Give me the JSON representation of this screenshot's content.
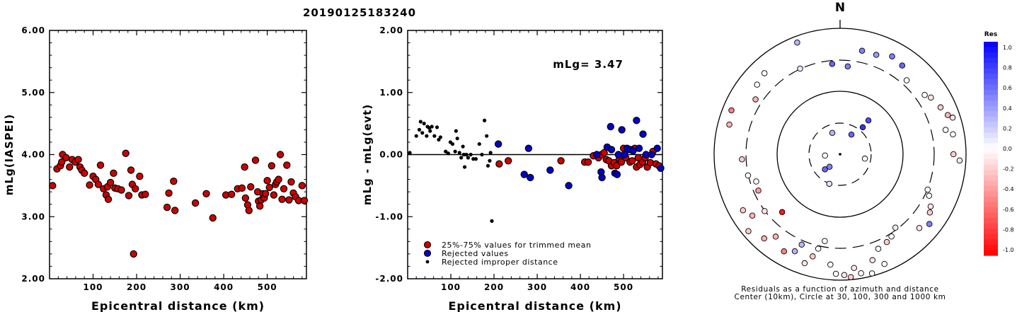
{
  "title": "20190125183240",
  "chart_data": [
    {
      "type": "scatter",
      "ylabel": "mLg(IASPEI)",
      "xlabel": "Epicentral distance (km)",
      "xlim": [
        0,
        590
      ],
      "ylim": [
        2.0,
        6.0
      ],
      "x_ticks": [
        100,
        200,
        300,
        400,
        500
      ],
      "x_tick_labels": [
        "100",
        "200",
        "300",
        "400",
        "500"
      ],
      "y_ticks": [
        2,
        3,
        4,
        5,
        6
      ],
      "y_tick_labels": [
        "2.00",
        "3.00",
        "4.00",
        "5.00",
        "6.00"
      ],
      "series": [
        {
          "color": "#cc0000",
          "points": [
            [
              7,
              3.5
            ],
            [
              17,
              3.77
            ],
            [
              25,
              3.82
            ],
            [
              28,
              3.88
            ],
            [
              30,
              4.0
            ],
            [
              38,
              3.95
            ],
            [
              46,
              3.8
            ],
            [
              52,
              3.92
            ],
            [
              59,
              3.88
            ],
            [
              66,
              3.92
            ],
            [
              70,
              3.8
            ],
            [
              74,
              3.75
            ],
            [
              80,
              3.7
            ],
            [
              92,
              3.51
            ],
            [
              100,
              3.65
            ],
            [
              106,
              3.6
            ],
            [
              112,
              3.52
            ],
            [
              117,
              3.83
            ],
            [
              124,
              3.45
            ],
            [
              130,
              3.35
            ],
            [
              133,
              3.48
            ],
            [
              135,
              3.28
            ],
            [
              140,
              3.55
            ],
            [
              147,
              3.7
            ],
            [
              150,
              3.46
            ],
            [
              157,
              3.45
            ],
            [
              165,
              3.43
            ],
            [
              175,
              4.02
            ],
            [
              182,
              3.34
            ],
            [
              187,
              3.75
            ],
            [
              190,
              3.52
            ],
            [
              193,
              2.4
            ],
            [
              197,
              3.45
            ],
            [
              207,
              3.65
            ],
            [
              212,
              3.35
            ],
            [
              220,
              3.36
            ],
            [
              270,
              3.15
            ],
            [
              274,
              3.38
            ],
            [
              285,
              3.57
            ],
            [
              288,
              3.1
            ],
            [
              335,
              3.22
            ],
            [
              360,
              3.37
            ],
            [
              375,
              2.98
            ],
            [
              405,
              3.35
            ],
            [
              418,
              3.36
            ],
            [
              432,
              3.45
            ],
            [
              442,
              3.46
            ],
            [
              448,
              3.8
            ],
            [
              450,
              3.3
            ],
            [
              455,
              3.19
            ],
            [
              458,
              3.1
            ],
            [
              462,
              3.48
            ],
            [
              473,
              3.91
            ],
            [
              478,
              3.4
            ],
            [
              480,
              3.25
            ],
            [
              483,
              3.17
            ],
            [
              486,
              3.27
            ],
            [
              490,
              3.37
            ],
            [
              493,
              3.3
            ],
            [
              496,
              3.37
            ],
            [
              500,
              3.58
            ],
            [
              505,
              3.47
            ],
            [
              510,
              3.82
            ],
            [
              515,
              3.35
            ],
            [
              519,
              3.52
            ],
            [
              522,
              3.56
            ],
            [
              526,
              3.6
            ],
            [
              530,
              4.0
            ],
            [
              534,
              3.28
            ],
            [
              538,
              3.45
            ],
            [
              545,
              3.83
            ],
            [
              550,
              3.27
            ],
            [
              555,
              3.56
            ],
            [
              560,
              3.38
            ],
            [
              565,
              3.32
            ],
            [
              572,
              3.26
            ],
            [
              580,
              3.5
            ],
            [
              585,
              3.26
            ]
          ]
        }
      ]
    },
    {
      "type": "scatter",
      "ylabel": "mLg - mLg(evt)",
      "xlabel": "Epicentral distance (km)",
      "annotation": "mLg= 3.47",
      "xlim": [
        0,
        590
      ],
      "ylim": [
        -2.0,
        2.0
      ],
      "x_ticks": [
        100,
        200,
        300,
        400,
        500
      ],
      "x_tick_labels": [
        "100",
        "200",
        "300",
        "400",
        "500"
      ],
      "y_ticks": [
        -2,
        -1,
        0,
        1,
        2
      ],
      "y_tick_labels": [
        "-2.00",
        "-1.00",
        "0.00",
        "1.00",
        "2.00"
      ],
      "reference_line": 0,
      "legend": [
        "25%-75% values for trimmed mean",
        "Rejected values",
        "Rejected improper distance"
      ],
      "series": [
        {
          "name": "25%-75% values for trimmed mean",
          "color": "#cc0000",
          "marker": "circle",
          "points": [
            [
              212,
              -0.15
            ],
            [
              233,
              -0.1
            ],
            [
              355,
              -0.1
            ],
            [
              410,
              -0.12
            ],
            [
              418,
              -0.12
            ],
            [
              430,
              -0.02
            ],
            [
              442,
              -0.05
            ],
            [
              449,
              0.0
            ],
            [
              455,
              0.03
            ],
            [
              460,
              -0.08
            ],
            [
              466,
              -0.1
            ],
            [
              472,
              -0.18
            ],
            [
              478,
              -0.13
            ],
            [
              484,
              -0.18
            ],
            [
              490,
              -0.07
            ],
            [
              495,
              -0.12
            ],
            [
              500,
              0.1
            ],
            [
              505,
              -0.05
            ],
            [
              510,
              0.08
            ],
            [
              515,
              -0.12
            ],
            [
              520,
              -0.1
            ],
            [
              526,
              0.1
            ],
            [
              530,
              -0.2
            ],
            [
              534,
              -0.05
            ],
            [
              538,
              -0.16
            ],
            [
              544,
              -0.12
            ],
            [
              550,
              -0.05
            ],
            [
              555,
              -0.2
            ],
            [
              562,
              -0.13
            ],
            [
              568,
              0.05
            ],
            [
              575,
              -0.15
            ],
            [
              582,
              -0.18
            ]
          ]
        },
        {
          "name": "Rejected values",
          "color": "#0000cc",
          "marker": "circle",
          "points": [
            [
              210,
              0.17
            ],
            [
              270,
              -0.32
            ],
            [
              280,
              0.1
            ],
            [
              284,
              -0.37
            ],
            [
              330,
              -0.25
            ],
            [
              373,
              -0.5
            ],
            [
              438,
              0.0
            ],
            [
              448,
              -0.28
            ],
            [
              450,
              -0.37
            ],
            [
              462,
              0.12
            ],
            [
              470,
              0.45
            ],
            [
              472,
              0.08
            ],
            [
              480,
              -0.3
            ],
            [
              485,
              -0.32
            ],
            [
              488,
              0.0
            ],
            [
              496,
              0.4
            ],
            [
              502,
              0.0
            ],
            [
              508,
              0.1
            ],
            [
              516,
              0.08
            ],
            [
              522,
              0.06
            ],
            [
              530,
              0.55
            ],
            [
              536,
              0.1
            ],
            [
              545,
              0.33
            ],
            [
              552,
              0.0
            ],
            [
              565,
              0.0
            ],
            [
              578,
              0.1
            ],
            [
              586,
              -0.22
            ]
          ]
        },
        {
          "name": "Rejected improper distance",
          "color": "#000000",
          "marker": "dot",
          "points": [
            [
              5,
              0.03
            ],
            [
              20,
              0.3
            ],
            [
              27,
              0.4
            ],
            [
              30,
              0.53
            ],
            [
              34,
              0.35
            ],
            [
              38,
              0.5
            ],
            [
              44,
              0.3
            ],
            [
              46,
              0.45
            ],
            [
              50,
              0.43
            ],
            [
              52,
              0.38
            ],
            [
              56,
              0.45
            ],
            [
              62,
              0.3
            ],
            [
              68,
              0.44
            ],
            [
              72,
              0.24
            ],
            [
              76,
              0.28
            ],
            [
              88,
              0.05
            ],
            [
              94,
              0.02
            ],
            [
              99,
              0.2
            ],
            [
              104,
              0.17
            ],
            [
              110,
              0.05
            ],
            [
              112,
              0.38
            ],
            [
              115,
              0.26
            ],
            [
              120,
              0.03
            ],
            [
              124,
              -0.05
            ],
            [
              128,
              0.13
            ],
            [
              130,
              0.0
            ],
            [
              132,
              -0.2
            ],
            [
              136,
              0.0
            ],
            [
              140,
              -0.05
            ],
            [
              146,
              0.0
            ],
            [
              152,
              -0.07
            ],
            [
              158,
              -0.07
            ],
            [
              166,
              0.17
            ],
            [
              172,
              0.0
            ],
            [
              178,
              0.55
            ],
            [
              183,
              0.3
            ],
            [
              186,
              -0.18
            ],
            [
              190,
              -0.1
            ],
            [
              192,
              0.03
            ],
            [
              195,
              -1.07
            ]
          ]
        }
      ]
    },
    {
      "type": "scatter",
      "polar": true,
      "north_label": "N",
      "caption": [
        "Residuals as a function of azimuth and distance",
        "Center (10km), Circle at 30, 100, 300 and 1000 km"
      ],
      "colorbar": {
        "title": "Res",
        "range": [
          -1.0,
          1.0
        ],
        "tick_labels": [
          "1.0",
          "0.8",
          "0.6",
          "0.4",
          "0.2",
          "0.0",
          "-0.2",
          "-0.4",
          "-0.6",
          "-0.8",
          "-1.0"
        ]
      },
      "stations": [
        [
          100,
          20,
          0.0
        ],
        [
          340,
          18,
          0.3
        ],
        [
          265,
          12,
          0.0
        ],
        [
          200,
          25,
          0.1
        ],
        [
          40,
          28,
          0.8
        ],
        [
          30,
          18,
          0.6
        ],
        [
          225,
          17,
          0.6
        ],
        [
          220,
          13,
          0.5
        ],
        [
          40,
          35,
          0.7
        ],
        [
          355,
          72,
          0.6
        ],
        [
          5,
          70,
          0.5
        ],
        [
          12,
          84,
          0.5
        ],
        [
          20,
          84,
          0.4
        ],
        [
          35,
          86,
          0.6
        ],
        [
          28,
          88,
          0.5
        ],
        [
          42,
          79,
          0.0
        ],
        [
          55,
          82,
          0.0
        ],
        [
          58,
          85,
          -0.1
        ],
        [
          65,
          88,
          -0.2
        ],
        [
          70,
          91,
          -0.3
        ],
        [
          72,
          94,
          -0.1
        ],
        [
          77,
          86,
          0.0
        ],
        [
          80,
          91,
          0.0
        ],
        [
          90,
          90,
          -0.2
        ],
        [
          93,
          95,
          -0.1
        ],
        [
          112,
          75,
          0.0
        ],
        [
          115,
          78,
          0.0
        ],
        [
          120,
          83,
          -0.1
        ],
        [
          123,
          85,
          -0.2
        ],
        [
          128,
          90,
          0.5
        ],
        [
          133,
          86,
          -0.1
        ],
        [
          143,
          73,
          -0.1
        ],
        [
          148,
          77,
          0.0
        ],
        [
          152,
          79,
          -0.2
        ],
        [
          158,
          81,
          0.0
        ],
        [
          158,
          94,
          0.0
        ],
        [
          163,
          88,
          -0.1
        ],
        [
          165,
          98,
          0.0
        ],
        [
          170,
          96,
          0.0
        ],
        [
          173,
          91,
          -0.1
        ],
        [
          175,
          98,
          -0.2
        ],
        [
          178,
          96,
          -0.1
        ],
        [
          182,
          95,
          0.0
        ],
        [
          185,
          88,
          0.0
        ],
        [
          190,
          70,
          0.0
        ],
        [
          193,
          77,
          0.0
        ],
        [
          195,
          84,
          -0.2
        ],
        [
          198,
          91,
          -0.1
        ],
        [
          203,
          78,
          0.3
        ],
        [
          205,
          85,
          0.3
        ],
        [
          210,
          89,
          -0.5
        ],
        [
          218,
          83,
          -0.3
        ],
        [
          222,
          90,
          -0.3
        ],
        [
          225,
          65,
          -0.9
        ],
        [
          230,
          95,
          -0.2
        ],
        [
          233,
          75,
          -0.1
        ],
        [
          235,
          85,
          -0.3
        ],
        [
          240,
          89,
          -0.2
        ],
        [
          246,
          71,
          -0.4
        ],
        [
          252,
          70,
          0.0
        ],
        [
          257,
          75,
          0.0
        ],
        [
          267,
          78,
          -0.2
        ],
        [
          285,
          91,
          -0.3
        ],
        [
          292,
          93,
          -0.5
        ],
        [
          303,
          80,
          -0.3
        ],
        [
          310,
          86,
          0.0
        ],
        [
          317,
          88,
          0.0
        ],
        [
          335,
          75,
          0.1
        ],
        [
          339,
          95,
          0.3
        ]
      ]
    }
  ]
}
